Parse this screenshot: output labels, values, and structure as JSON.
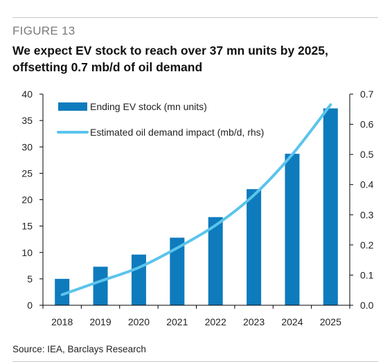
{
  "figure_label": "FIGURE 13",
  "title": "We expect EV stock to reach over 37 mn units by 2025, offsetting 0.7 mb/d of oil demand",
  "source": "Source: IEA, Barclays Research",
  "colors": {
    "bar": "#0e7bbd",
    "line": "#5bc4ec",
    "axis": "#000000"
  },
  "chart_data": {
    "type": "bar",
    "categories": [
      "2018",
      "2019",
      "2020",
      "2021",
      "2022",
      "2023",
      "2024",
      "2025"
    ],
    "series": [
      {
        "name": "Ending EV stock (mn units)",
        "type": "bar",
        "axis": "left",
        "values": [
          5.0,
          7.3,
          9.6,
          12.8,
          16.7,
          22.0,
          28.7,
          37.3
        ]
      },
      {
        "name": "Estimated oil demand impact (mb/d, rhs)",
        "type": "line",
        "axis": "right",
        "values": [
          0.035,
          0.08,
          0.125,
          0.19,
          0.265,
          0.365,
          0.5,
          0.665
        ]
      }
    ],
    "y_left": {
      "ylim": [
        0,
        40
      ],
      "ticks": [
        "0",
        "5",
        "10",
        "15",
        "20",
        "25",
        "30",
        "35",
        "40"
      ]
    },
    "y_right": {
      "ylim": [
        0,
        0.7
      ],
      "ticks": [
        "0.0",
        "0.1",
        "0.2",
        "0.3",
        "0.4",
        "0.5",
        "0.6",
        "0.7"
      ]
    },
    "legend_placement": "top-left",
    "grid": false
  }
}
